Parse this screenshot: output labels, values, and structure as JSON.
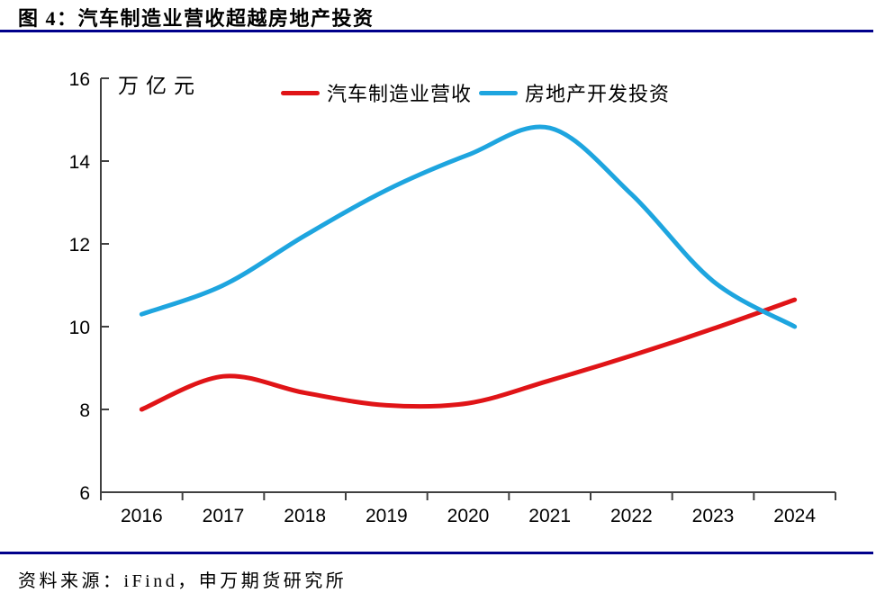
{
  "figure": {
    "title": "图 4：汽车制造业营收超越房地产投资",
    "source": "资料来源：iFind，申万期货研究所"
  },
  "colors": {
    "rule": "#00008b",
    "axis": "#404040",
    "series_red": "#e01417",
    "series_blue": "#1ea5df"
  },
  "chart_data": {
    "type": "line",
    "title": "图 4：汽车制造业营收超越房地产投资",
    "unit_label": "万亿元",
    "categories": [
      "2016",
      "2017",
      "2018",
      "2019",
      "2020",
      "2021",
      "2022",
      "2023",
      "2024"
    ],
    "series": [
      {
        "name": "汽车制造业营收",
        "color": "#e01417",
        "values": [
          8.0,
          8.8,
          8.4,
          8.1,
          8.15,
          8.7,
          9.3,
          9.95,
          10.65
        ]
      },
      {
        "name": "房地产开发投资",
        "color": "#1ea5df",
        "values": [
          10.3,
          11.0,
          12.2,
          13.3,
          14.15,
          14.8,
          13.2,
          11.1,
          10.0
        ]
      }
    ],
    "ylim": [
      6,
      16
    ],
    "yticks": [
      6,
      8,
      10,
      12,
      14,
      16
    ],
    "grid": false,
    "legend_position": "top-center",
    "line_smoothing": true
  }
}
